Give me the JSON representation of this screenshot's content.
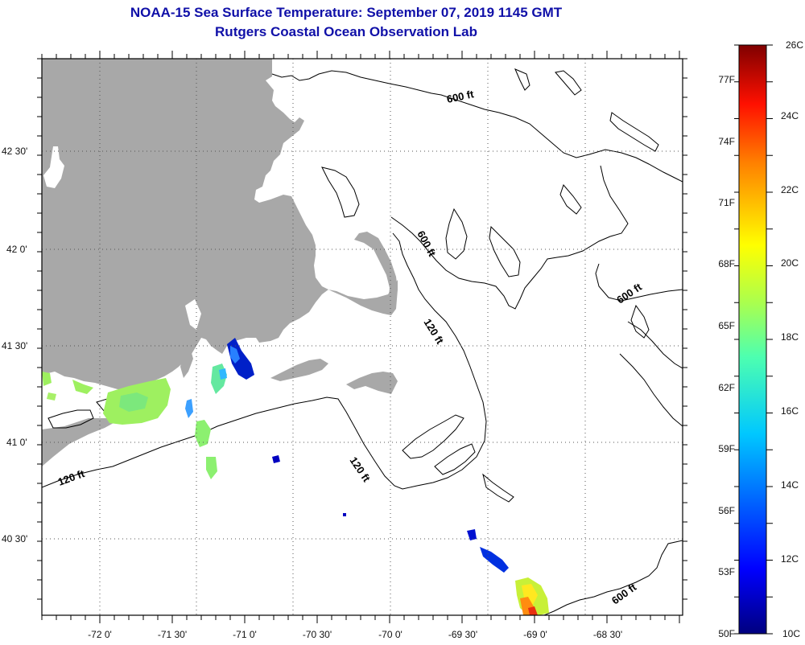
{
  "header": {
    "title_line1": "NOAA-15 Sea Surface Temperature:  September 07, 2019 1145 GMT",
    "title_line2": "Rutgers Coastal Ocean Observation Lab"
  },
  "map": {
    "longitude_labels": [
      "-72 0'",
      "-71 30'",
      "-71 0'",
      "-70 30'",
      "-70 0'",
      "-69 30'",
      "-69 0'",
      "-68 30'"
    ],
    "latitude_labels": [
      "42 30'",
      "42 0'",
      "41 30'",
      "41 0'",
      "40 30'"
    ],
    "contour_labels": [
      "600 ft",
      "600 ft",
      "600 ft",
      "600 ft",
      "120 ft",
      "120 ft",
      "120 ft"
    ],
    "colors": {
      "land": "#a8a8a8",
      "cloud": "#ffffff",
      "frame": "#000000",
      "grid": "#555555"
    }
  },
  "colorbar": {
    "fahrenheit_labels": [
      "77F",
      "74F",
      "71F",
      "68F",
      "65F",
      "62F",
      "59F",
      "56F",
      "53F",
      "50F"
    ],
    "celsius_labels": [
      "26C",
      "24C",
      "22C",
      "20C",
      "18C",
      "16C",
      "14C",
      "12C",
      "10C"
    ],
    "range_c": [
      10,
      26
    ],
    "stops": [
      "#00007f",
      "#0000ff",
      "#007fff",
      "#00ffff",
      "#7fff7f",
      "#ffff00",
      "#ff7f00",
      "#ff0000",
      "#7f0000"
    ]
  }
}
